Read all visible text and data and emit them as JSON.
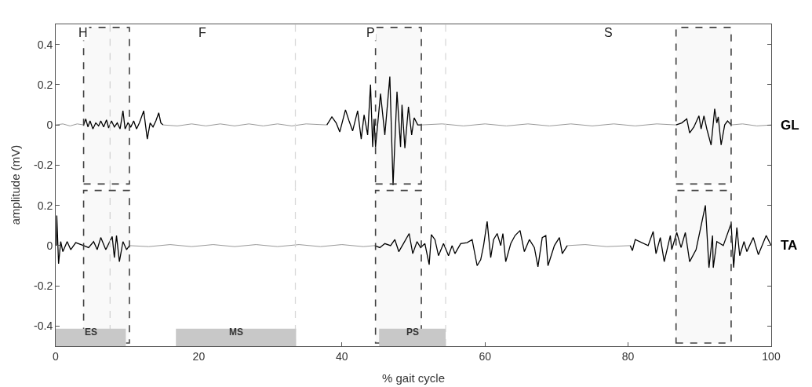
{
  "chart_data": [
    {
      "type": "line",
      "ylabel": "amplitude (mV)",
      "xlim": [
        0,
        100
      ],
      "xticks": [
        0,
        20,
        40,
        60,
        80,
        100
      ],
      "ylim": [
        -0.31,
        0.5
      ],
      "yticks": [
        -0.2,
        0,
        0.2,
        0.4
      ],
      "tick_labels": "y",
      "series": [
        {
          "color": "#999999",
          "x": [
            0,
            1,
            2,
            3,
            3.9,
            9,
            15,
            17,
            19,
            21,
            23,
            25,
            27,
            29,
            31,
            33,
            35,
            37.9,
            45,
            51.1,
            54,
            57,
            60,
            63,
            66,
            69,
            72,
            75,
            78,
            81,
            84,
            86.7,
            90,
            94.4,
            96,
            98,
            100
          ],
          "values": [
            0,
            0.005,
            -0.005,
            0.005,
            0,
            null,
            0,
            -0.005,
            0.005,
            -0.005,
            0.005,
            -0.005,
            0.005,
            -0.005,
            0.005,
            -0.005,
            0.005,
            0,
            null,
            0,
            0.005,
            -0.005,
            0.005,
            -0.005,
            0.005,
            -0.005,
            0.005,
            -0.005,
            0.005,
            -0.005,
            0.005,
            0,
            null,
            0,
            0.005,
            -0.005,
            0
          ]
        },
        {
          "color": "#000000",
          "x": [
            3.9,
            4.2,
            4.5,
            4.8,
            5.2,
            5.6,
            6.0,
            6.3,
            6.7,
            7.1,
            7.4,
            7.8,
            8.2,
            8.6,
            9.0,
            9.4,
            9.7,
            10.1,
            10.5,
            10.9,
            11.3,
            11.7,
            12.3,
            12.8,
            13.2,
            13.6,
            14.0,
            14.4,
            14.7,
            15.0,
            25,
            37.9,
            38.6,
            39.2,
            39.7,
            40.5,
            41.0,
            41.5,
            42.2,
            42.7,
            43.1,
            43.6,
            44.0,
            44.3,
            44.5,
            44.7,
            45.4,
            46.0,
            46.7,
            47.15,
            47.7,
            48.2,
            48.4,
            48.8,
            49.3,
            49.75,
            50.1,
            50.6,
            51.1,
            70,
            86.7,
            87.5,
            88.2,
            88.6,
            89.2,
            89.9,
            90.2,
            90.6,
            91.0,
            91.6,
            92.1,
            92.4,
            92.6,
            93.0,
            93.5,
            93.9,
            94.4
          ],
          "values": [
            0,
            0.03,
            -0.01,
            0.02,
            -0.02,
            0.01,
            -0.005,
            0.02,
            -0.01,
            0.025,
            -0.015,
            0.02,
            -0.01,
            0.01,
            -0.02,
            0.07,
            -0.02,
            0.01,
            -0.01,
            0.02,
            -0.02,
            0.01,
            0.07,
            -0.07,
            0.01,
            -0.01,
            0.02,
            0.06,
            0.01,
            0,
            null,
            0,
            0.04,
            0.01,
            -0.035,
            0.075,
            0.02,
            -0.03,
            0.07,
            -0.07,
            0.05,
            -0.05,
            0.2,
            -0.11,
            0.03,
            -0.11,
            0.155,
            -0.05,
            0.24,
            -0.3,
            0.165,
            -0.11,
            0.1,
            -0.115,
            0.09,
            -0.05,
            0.035,
            0,
            0,
            null,
            0,
            0.01,
            0.03,
            -0.04,
            -0.01,
            0.045,
            -0.02,
            0.045,
            -0.02,
            -0.1,
            0.08,
            0.01,
            0.04,
            -0.1,
            0,
            0.02,
            0
          ]
        }
      ],
      "ref_lines": [
        {
          "axis": "x",
          "value": 7.6,
          "color": "#d9d9d9",
          "line_style": "dashed"
        },
        {
          "axis": "x",
          "value": 33.5,
          "color": "#d9d9d9",
          "line_style": "dashed"
        },
        {
          "axis": "x",
          "value": 54.5,
          "color": "#d9d9d9",
          "line_style": "dashed"
        }
      ],
      "bands": [
        {
          "axis": "x",
          "from": 3.9,
          "to": 10.3,
          "color": "#404040"
        },
        {
          "axis": "x",
          "from": 44.7,
          "to": 51.1,
          "color": "#404040"
        },
        {
          "axis": "x",
          "from": 86.7,
          "to": 94.4,
          "color": "#404040"
        }
      ],
      "annotations": [
        "H",
        "F",
        "P",
        "S",
        {
          "text": "GL",
          "x": 100,
          "y": 0
        }
      ]
    },
    {
      "type": "line",
      "xlabel": "% gait cycle",
      "xlim": [
        0,
        100
      ],
      "xticks": [
        0,
        20,
        40,
        60,
        80,
        100
      ],
      "ylim": [
        -0.5,
        0.29
      ],
      "yticks": [
        -0.4,
        -0.2,
        0,
        0.2
      ],
      "series": [
        {
          "color": "#999999",
          "x": [
            10.3,
            13,
            16,
            19,
            22,
            25,
            28,
            31,
            34,
            37,
            40,
            43,
            44.6,
            58,
            71.5,
            74,
            77,
            80.3
          ],
          "values": [
            0,
            -0.005,
            0.005,
            -0.005,
            0.005,
            -0.005,
            0.005,
            -0.005,
            0.005,
            -0.005,
            0.005,
            -0.005,
            0,
            null,
            0,
            0.005,
            -0.005,
            0
          ]
        },
        {
          "color": "#000000",
          "x": [
            0.1,
            0.15,
            0.4,
            0.7,
            1.0,
            1.6,
            2.1,
            2.8,
            3.9,
            4.6,
            5.3,
            5.8,
            6.3,
            7.0,
            7.9,
            8.2,
            8.5,
            8.9,
            9.4,
            9.9,
            10.3,
            27,
            44.6,
            45.3,
            46.0,
            46.8,
            47.4,
            47.95,
            48.6,
            49.4,
            49.9,
            50.5,
            51.0,
            51.6,
            52.2,
            52.5,
            53.0,
            53.5,
            54.2,
            54.9,
            55.4,
            55.8,
            56.6,
            57.5,
            58.2,
            58.9,
            59.4,
            59.8,
            60.3,
            60.8,
            61.2,
            61.7,
            62.2,
            62.5,
            62.9,
            63.6,
            64.2,
            64.9,
            65.5,
            66.2,
            66.9,
            67.4,
            68.0,
            68.5,
            68.8,
            69.7,
            70.4,
            70.8,
            71.5,
            76,
            80.3,
            80.6,
            81.0,
            82.8,
            83.5,
            83.9,
            84.5,
            85.05,
            85.9,
            86.1,
            86.8,
            87.4,
            88.0,
            88.6,
            89.5,
            90.8,
            91.3,
            91.8,
            91.9,
            92.4,
            93.3,
            94.4,
            94.75,
            95.2,
            95.6,
            96.2,
            96.6,
            97.5,
            98.2,
            99.3,
            100
          ],
          "values": [
            0,
            0.15,
            -0.09,
            0.02,
            -0.03,
            0.02,
            -0.02,
            0.015,
            0,
            -0.01,
            0.02,
            -0.02,
            0.04,
            -0.02,
            0.045,
            -0.06,
            0.05,
            -0.08,
            0.02,
            -0.02,
            0,
            null,
            0,
            -0.01,
            0.01,
            0,
            0.03,
            -0.03,
            0.01,
            0.06,
            -0.04,
            0.02,
            -0.01,
            0.01,
            -0.095,
            0.055,
            0.03,
            -0.05,
            0.01,
            -0.05,
            0,
            -0.04,
            0.01,
            0.015,
            0.03,
            -0.1,
            -0.07,
            0,
            0.12,
            -0.06,
            0.03,
            0.06,
            0,
            0.06,
            -0.08,
            0.01,
            0.05,
            0.075,
            -0.03,
            0.03,
            -0.01,
            -0.105,
            0.04,
            0.05,
            -0.1,
            0,
            0.04,
            -0.04,
            0,
            null,
            0,
            -0.025,
            0.03,
            0,
            0.07,
            -0.04,
            0.04,
            -0.08,
            0.05,
            -0.02,
            0.065,
            -0.01,
            0.065,
            -0.08,
            -0.02,
            0.2,
            -0.11,
            0.05,
            -0.11,
            0.02,
            0,
            0.11,
            -0.11,
            0.09,
            -0.05,
            0.02,
            -0.03,
            0.04,
            -0.045,
            0.05,
            0
          ]
        }
      ],
      "ref_lines": [
        {
          "axis": "x",
          "value": 7.6,
          "color": "#d9d9d9",
          "line_style": "dashed"
        },
        {
          "axis": "x",
          "value": 33.5,
          "color": "#d9d9d9",
          "line_style": "dashed"
        },
        {
          "axis": "x",
          "value": 54.5,
          "color": "#d9d9d9",
          "line_style": "dashed"
        }
      ],
      "bands": [
        {
          "axis": "x",
          "from": 3.9,
          "to": 10.3,
          "color": "#404040"
        },
        {
          "axis": "x",
          "from": 44.7,
          "to": 51.1,
          "color": "#404040"
        },
        {
          "axis": "x",
          "from": 86.7,
          "to": 94.4,
          "color": "#404040"
        },
        {
          "axis": "x",
          "from": 0,
          "to": 9.8,
          "label": "ES",
          "color": "#c8c8c8"
        },
        {
          "axis": "x",
          "from": 16.8,
          "to": 33.6,
          "label": "MS",
          "color": "#c8c8c8"
        },
        {
          "axis": "x",
          "from": 45.2,
          "to": 54.5,
          "label": "PS",
          "color": "#c8c8c8"
        }
      ],
      "annotations": [
        {
          "text": "TA",
          "x": 100,
          "y": 0
        }
      ]
    }
  ]
}
